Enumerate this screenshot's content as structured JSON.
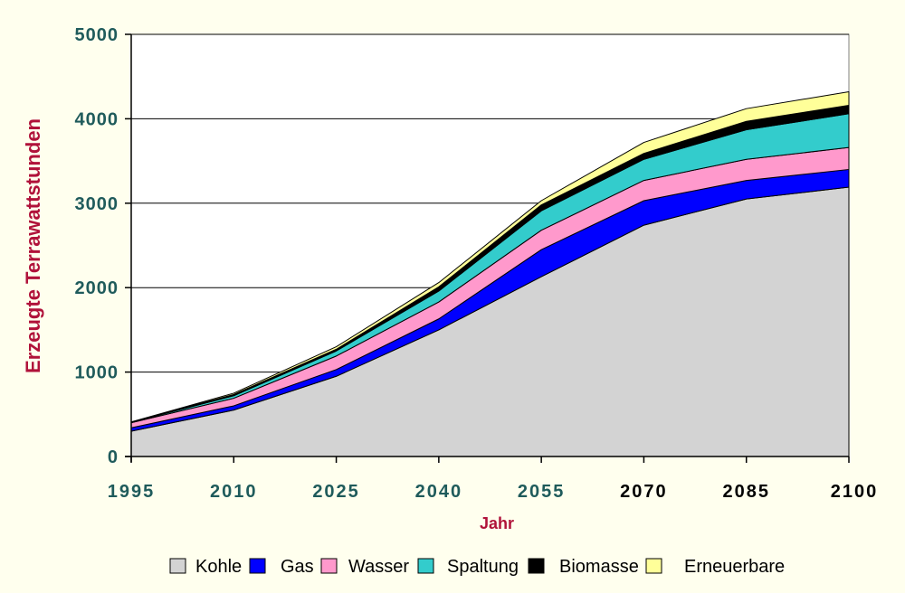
{
  "chart_data": {
    "type": "area",
    "stacked": true,
    "xlabel": "Jahr",
    "ylabel": "Erzeugte Terrawattstunden",
    "x": [
      "1995",
      "2010",
      "2025",
      "2040",
      "2055",
      "2070",
      "2085",
      "2100"
    ],
    "ylim": [
      0,
      5000
    ],
    "yticks": [
      "0",
      "1000",
      "2000",
      "3000",
      "4000",
      "5000"
    ],
    "grid": true,
    "legend_position": "bottom",
    "series": [
      {
        "name": "Kohle",
        "color": "#D3D3D3",
        "values": [
          300,
          550,
          950,
          1500,
          2130,
          2740,
          3050,
          3190
        ]
      },
      {
        "name": "Gas",
        "color": "#0000FF",
        "values": [
          40,
          50,
          80,
          130,
          320,
          290,
          220,
          210
        ]
      },
      {
        "name": "Wasser",
        "color": "#FF99CC",
        "values": [
          60,
          90,
          160,
          200,
          230,
          240,
          250,
          260
        ]
      },
      {
        "name": "Spaltung",
        "color": "#33CCCC",
        "values": [
          5,
          30,
          60,
          130,
          230,
          250,
          350,
          400
        ]
      },
      {
        "name": "Biomasse",
        "color": "#000000",
        "values": [
          3,
          15,
          20,
          50,
          70,
          70,
          100,
          100
        ]
      },
      {
        "name": "Erneuerbare",
        "color": "#FFFF99",
        "values": [
          2,
          15,
          30,
          50,
          50,
          130,
          150,
          160
        ]
      }
    ],
    "colors": {
      "plot_background": "#FFFFFF",
      "page_background": "#FFFFEE",
      "axis_title": "#B0123A",
      "y_tick_label": "#1F5B5B",
      "x_tick_label_early": "#1F5B5B",
      "x_tick_label_late": "#000000"
    }
  }
}
